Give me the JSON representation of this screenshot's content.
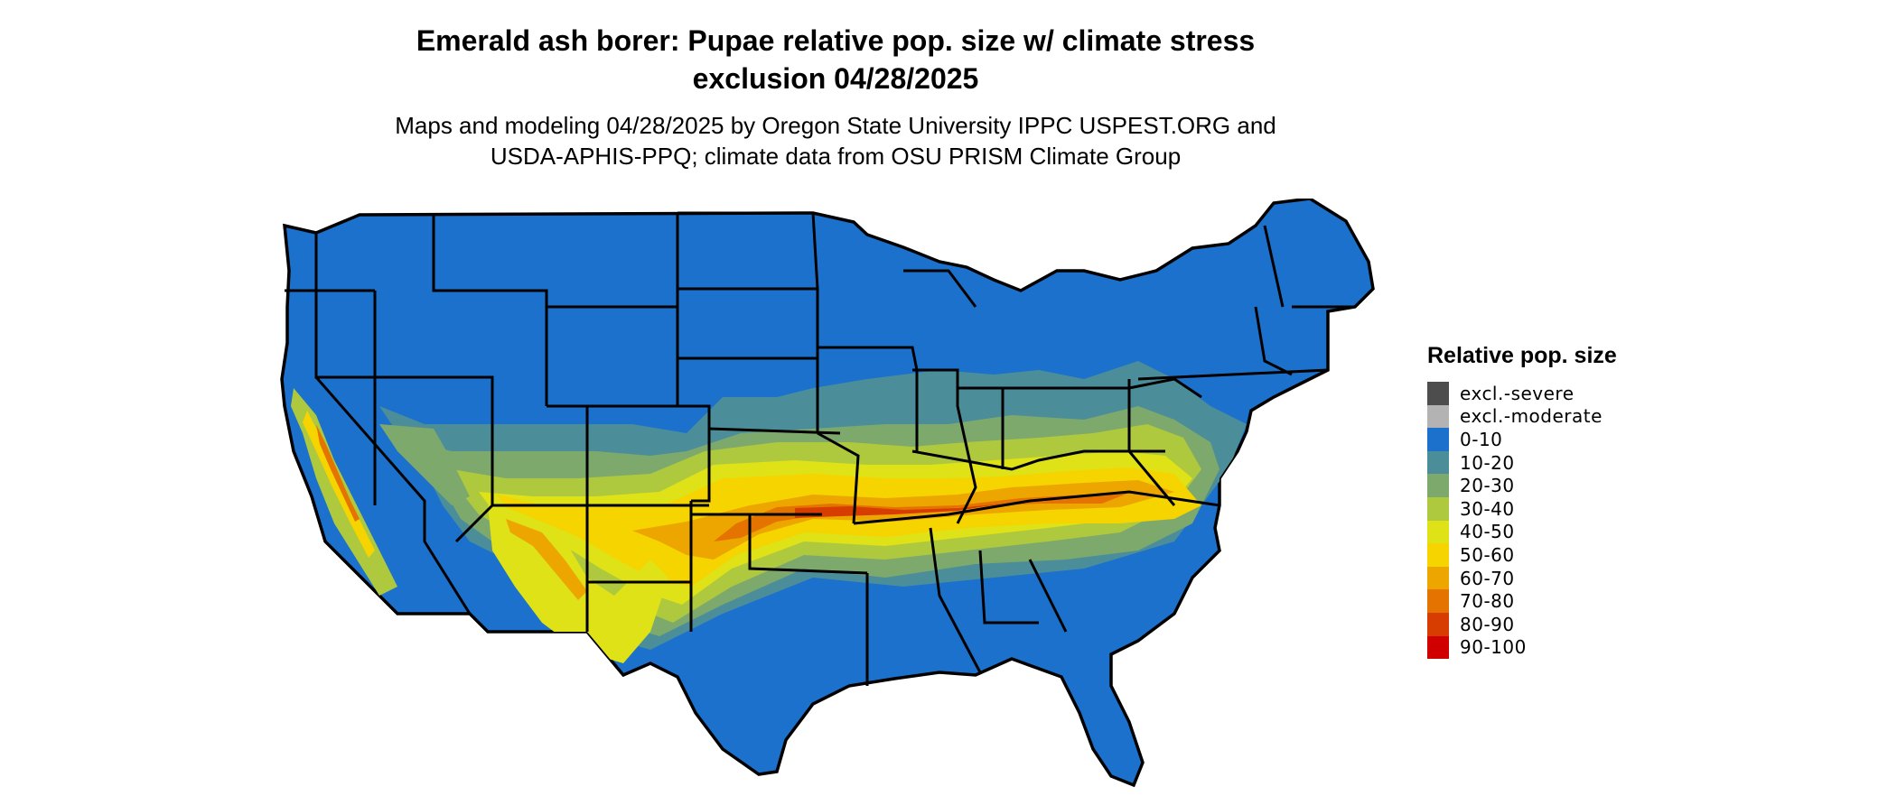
{
  "title": {
    "line1": "Emerald ash borer: Pupae relative pop. size w/ climate stress",
    "line2": "exclusion 04/28/2025"
  },
  "subtitle": {
    "line1": "Maps and modeling 04/28/2025 by Oregon State University IPPC USPEST.ORG and",
    "line2": "USDA-APHIS-PPQ; climate data from OSU PRISM Climate Group"
  },
  "legend": {
    "title": "Relative pop. size",
    "items": [
      {
        "label": "excl.-severe",
        "color": "#4d4d4d"
      },
      {
        "label": "excl.-moderate",
        "color": "#b3b3b3"
      },
      {
        "label": "0-10",
        "color": "#1b71cc"
      },
      {
        "label": "10-20",
        "color": "#4b8e9a"
      },
      {
        "label": "20-30",
        "color": "#7ea96c"
      },
      {
        "label": "30-40",
        "color": "#afc93e"
      },
      {
        "label": "40-50",
        "color": "#dfe216"
      },
      {
        "label": "50-60",
        "color": "#f5d400"
      },
      {
        "label": "60-70",
        "color": "#eda600"
      },
      {
        "label": "70-80",
        "color": "#e57300"
      },
      {
        "label": "80-90",
        "color": "#d73c00"
      },
      {
        "label": "90-100",
        "color": "#d10000"
      }
    ]
  },
  "map": {
    "region": "Contiguous United States",
    "base_color": "#1b71cc",
    "border_color": "#000000"
  }
}
